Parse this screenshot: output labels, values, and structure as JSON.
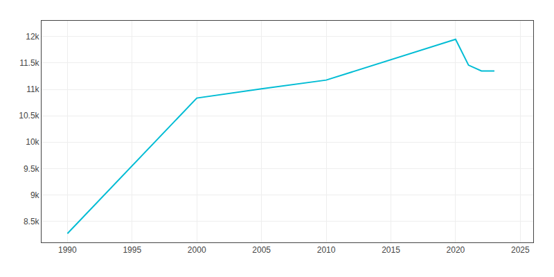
{
  "chart_data": {
    "type": "line",
    "x": [
      1990,
      2000,
      2005,
      2010,
      2020,
      2021,
      2022,
      2023
    ],
    "values": [
      8268,
      10835,
      11010,
      11176,
      11949,
      11459,
      11350,
      11347
    ],
    "color": "#00BCD4",
    "xlim": [
      1988,
      2026
    ],
    "xticks": [
      1990,
      1995,
      2000,
      2005,
      2010,
      2015,
      2020,
      2025
    ],
    "ylim": [
      8100,
      12300
    ],
    "yticks": [
      {
        "value": 8500,
        "label": "8.5k"
      },
      {
        "value": 9000,
        "label": "9k"
      },
      {
        "value": 9500,
        "label": "9.5k"
      },
      {
        "value": 10000,
        "label": "10k"
      },
      {
        "value": 10500,
        "label": "10.5k"
      },
      {
        "value": 11000,
        "label": "11k"
      },
      {
        "value": 11500,
        "label": "11.5k"
      },
      {
        "value": 12000,
        "label": "12k"
      }
    ],
    "grid": true
  }
}
